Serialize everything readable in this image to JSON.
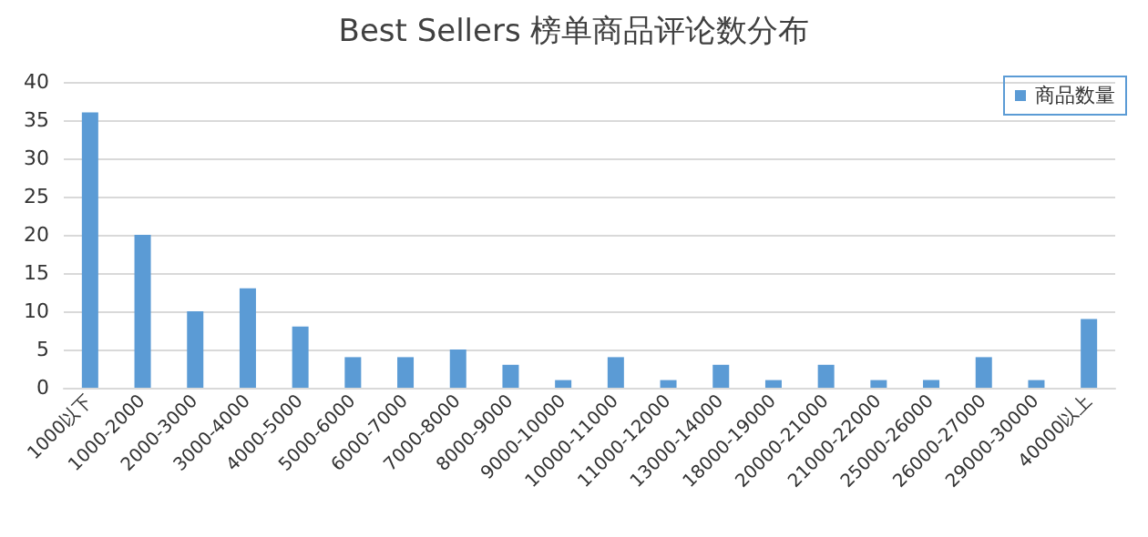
{
  "chart_data": {
    "type": "bar",
    "title": "Best Sellers 榜单商品评论数分布",
    "categories": [
      "1000以下",
      "1000-2000",
      "2000-3000",
      "3000-4000",
      "4000-5000",
      "5000-6000",
      "6000-7000",
      "7000-8000",
      "8000-9000",
      "9000-10000",
      "10000-11000",
      "11000-12000",
      "13000-14000",
      "18000-19000",
      "20000-21000",
      "21000-22000",
      "25000-26000",
      "26000-27000",
      "29000-30000",
      "40000以上"
    ],
    "series": [
      {
        "name": "商品数量",
        "color": "#5b9bd5",
        "values": [
          36,
          20,
          10,
          13,
          8,
          4,
          4,
          5,
          3,
          1,
          4,
          1,
          3,
          1,
          3,
          1,
          1,
          4,
          1,
          9
        ]
      }
    ],
    "ylim": [
      0,
      40
    ],
    "yticks": [
      0,
      5,
      10,
      15,
      20,
      25,
      30,
      35,
      40
    ],
    "grid": "y",
    "legend": "top right"
  }
}
